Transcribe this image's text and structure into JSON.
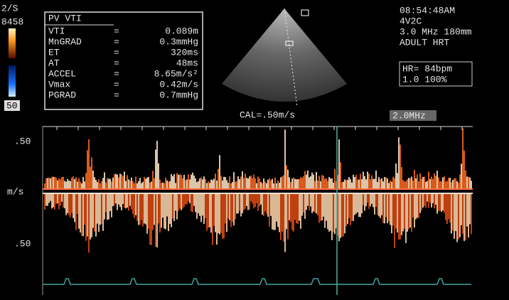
{
  "header": {
    "scale": "2/S",
    "map": "8458",
    "gain": "50"
  },
  "measurements": {
    "title": "PV VTI",
    "rows": [
      [
        "VTI",
        "=",
        "0.089m"
      ],
      [
        "MnGRAD",
        "=",
        "0.3mmHg"
      ],
      [
        "ET",
        "=",
        "320ms"
      ],
      [
        "AT",
        "=",
        "48ms"
      ],
      [
        "ACCEL",
        "=",
        "8.65m/s²"
      ],
      [
        "Vmax",
        "=",
        "0.42m/s"
      ],
      [
        "PGRAD",
        "=",
        "0.7mmHg"
      ]
    ]
  },
  "info": [
    "08:54:48AM",
    "4V2C",
    "3.0 MHz 180mm",
    "ADULT HRT"
  ],
  "hr_box": [
    "HR= 84bpm",
    "1.0 100%"
  ],
  "cal": "CAL=.50m/s",
  "frequency": "2.0MHz",
  "axis_labels": [
    ".50",
    "m/s",
    ".50"
  ]
}
